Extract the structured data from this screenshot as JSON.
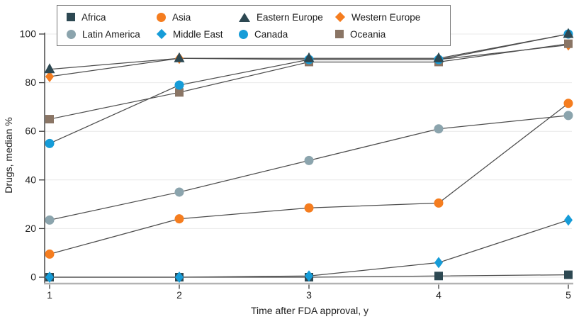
{
  "figure": {
    "background": "#ffffff"
  },
  "legend": {
    "items": [
      {
        "label": "Africa",
        "marker": "square",
        "color": "#2d4852"
      },
      {
        "label": "Asia",
        "marker": "circle",
        "color": "#f57d1f"
      },
      {
        "label": "Eastern Europe",
        "marker": "triangle",
        "color": "#2d4852"
      },
      {
        "label": "Western Europe",
        "marker": "diamond",
        "color": "#f57d1f"
      },
      {
        "label": "Latin America",
        "marker": "circle",
        "color": "#8ba4ad"
      },
      {
        "label": "Middle East",
        "marker": "diamond",
        "color": "#169cd8"
      },
      {
        "label": "Canada",
        "marker": "circle",
        "color": "#169cd8"
      },
      {
        "label": "Oceania",
        "marker": "square",
        "color": "#8a7565"
      }
    ]
  },
  "chart_data": {
    "type": "line",
    "title": "",
    "xlabel": "Time after FDA approval, y",
    "ylabel": "Drugs, median %",
    "x": [
      1,
      2,
      3,
      4,
      5
    ],
    "x_ticks": [
      1,
      2,
      3,
      4,
      5
    ],
    "y_ticks": [
      0,
      20,
      40,
      60,
      80,
      100
    ],
    "ylim": [
      0,
      100
    ],
    "grid": true,
    "legend_position": "top",
    "line_color": "#4d4d4d",
    "grid_color": "#e9e9e9",
    "axis_color": "#3d3d3d",
    "baseline_color": "#b3b3b3",
    "series": [
      {
        "name": "Western Europe",
        "marker": "diamond",
        "color": "#f57d1f",
        "values": [
          82.5,
          90,
          89.5,
          89.5,
          95.5
        ]
      },
      {
        "name": "Oceania",
        "marker": "square",
        "color": "#8a7565",
        "values": [
          65,
          76,
          88.5,
          88.5,
          96
        ]
      },
      {
        "name": "Canada",
        "marker": "circle",
        "color": "#169cd8",
        "values": [
          55,
          79,
          89.5,
          89.5,
          100
        ]
      },
      {
        "name": "Latin America",
        "marker": "circle",
        "color": "#8ba4ad",
        "values": [
          23.5,
          35,
          48,
          61,
          66.5
        ]
      },
      {
        "name": "Africa",
        "marker": "square",
        "color": "#2d4852",
        "values": [
          0,
          0,
          0,
          0.5,
          1
        ]
      },
      {
        "name": "Middle East",
        "marker": "diamond",
        "color": "#169cd8",
        "values": [
          0,
          0,
          0.5,
          6,
          23.5
        ]
      },
      {
        "name": "Asia",
        "marker": "circle",
        "color": "#f57d1f",
        "values": [
          9.5,
          24,
          28.5,
          30.5,
          71.5
        ]
      },
      {
        "name": "Eastern Europe",
        "marker": "triangle",
        "color": "#2d4852",
        "values": [
          85.5,
          90,
          90,
          90,
          100
        ]
      }
    ]
  }
}
